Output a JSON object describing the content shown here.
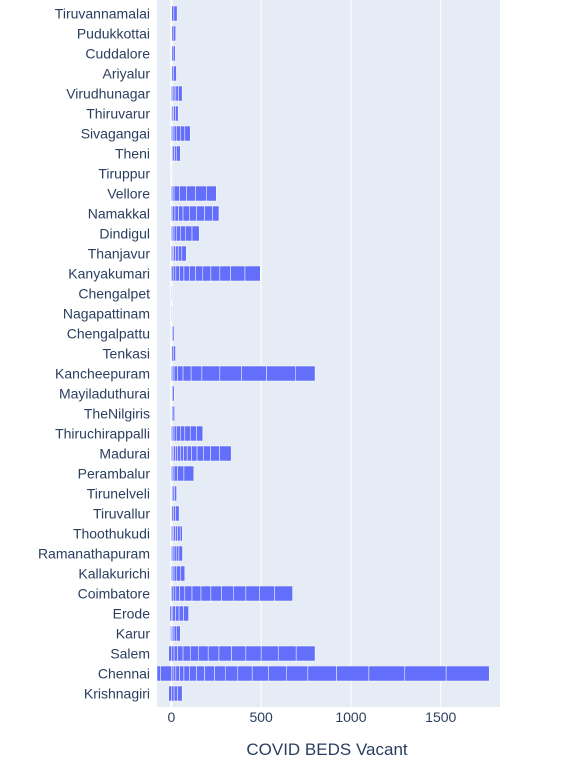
{
  "chart_data": {
    "type": "bar",
    "orientation": "horizontal",
    "stacked": true,
    "title": "",
    "xlabel": "COVID BEDS Vacant",
    "ylabel": "",
    "xlim": [
      -80,
      1830
    ],
    "xticks": [
      0,
      500,
      1000,
      1500
    ],
    "grid": true,
    "legend": "none",
    "colors": {
      "bar": "#636efa",
      "bar_edge": "#ffffff",
      "plot_bg": "#e5ecf6",
      "grid": "#ffffff",
      "text": "#2a3f5f"
    },
    "categories": [
      "Tiruvannamalai",
      "Pudukkottai",
      "Cuddalore",
      "Ariyalur",
      "Virudhunagar",
      "Thiruvarur",
      "Sivagangai",
      "Theni",
      "Tiruppur",
      "Vellore",
      "Namakkal",
      "Dindigul",
      "Thanjavur",
      "Kanyakumari",
      "Chengalpet",
      "Nagapattinam",
      "Chengalpattu",
      "Tenkasi",
      "Kancheepuram",
      "Mayiladuthurai",
      "TheNilgiris",
      "Thiruchirappalli",
      "Madurai",
      "Perambalur",
      "Tirunelveli",
      "Tiruvallur",
      "Thoothukudi",
      "Ramanathapuram",
      "Kallakurichi",
      "Coimbatore",
      "Erode",
      "Karur",
      "Salem",
      "Chennai",
      "Krishnagiri"
    ],
    "segments": [
      [
        2,
        12,
        18
      ],
      [
        2,
        8,
        14
      ],
      [
        2,
        8,
        12
      ],
      [
        3,
        10,
        15
      ],
      [
        5,
        10,
        10,
        15,
        20
      ],
      [
        4,
        8,
        12,
        14
      ],
      [
        5,
        10,
        15,
        20,
        25,
        30
      ],
      [
        3,
        5,
        10,
        12,
        20
      ],
      [
        2,
        3
      ],
      [
        5,
        10,
        30,
        40,
        50,
        60,
        55
      ],
      [
        5,
        15,
        20,
        25,
        35,
        40,
        45,
        45,
        35
      ],
      [
        5,
        10,
        15,
        20,
        30,
        35,
        40
      ],
      [
        5,
        8,
        10,
        15,
        20,
        25
      ],
      [
        10,
        15,
        20,
        25,
        30,
        35,
        40,
        45,
        50,
        60,
        80,
        85
      ],
      [
        1
      ],
      [
        1
      ],
      [
        3,
        5,
        7
      ],
      [
        3,
        8,
        12
      ],
      [
        5,
        10,
        20,
        30,
        45,
        60,
        100,
        120,
        140,
        160,
        110
      ],
      [
        3,
        5,
        8
      ],
      [
        3,
        6,
        9
      ],
      [
        5,
        10,
        15,
        20,
        25,
        30,
        35,
        35
      ],
      [
        5,
        8,
        10,
        12,
        15,
        18,
        20,
        25,
        30,
        35,
        40,
        50,
        65
      ],
      [
        5,
        10,
        20,
        35,
        55
      ],
      [
        3,
        6,
        8,
        12
      ],
      [
        3,
        8,
        12,
        20
      ],
      [
        5,
        8,
        10,
        12,
        14,
        12
      ],
      [
        5,
        10,
        12,
        15,
        20
      ],
      [
        5,
        10,
        15,
        20,
        25
      ],
      [
        10,
        15,
        20,
        30,
        40,
        50,
        55,
        60,
        65,
        70,
        75,
        85,
        100
      ],
      [
        -8,
        8,
        15,
        20,
        25,
        28
      ],
      [
        -5,
        5,
        10,
        15,
        20
      ],
      [
        -15,
        15,
        20,
        30,
        40,
        45,
        55,
        60,
        70,
        80,
        85,
        95,
        100,
        105
      ],
      [
        -60,
        -20,
        10,
        15,
        20,
        25,
        30,
        40,
        45,
        55,
        60,
        70,
        80,
        90,
        100,
        120,
        160,
        180,
        200,
        230,
        240
      ],
      [
        -15,
        15,
        20,
        25
      ]
    ]
  }
}
